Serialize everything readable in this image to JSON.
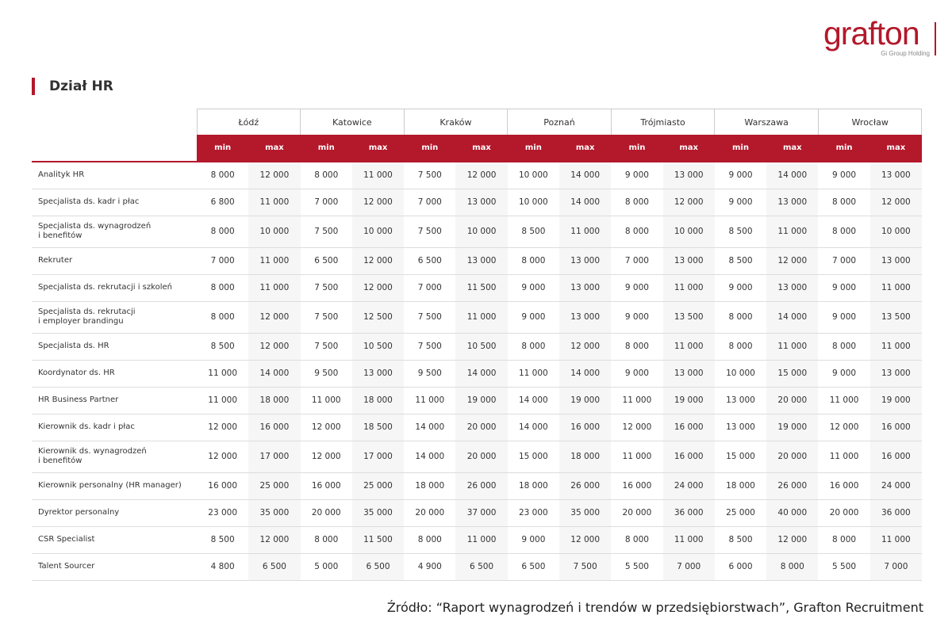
{
  "header": {
    "logo": "grafton",
    "tagline": "Gi Group Holding"
  },
  "title": "Dział HR",
  "table": {
    "cities": [
      "Łódź",
      "Katowice",
      "Kraków",
      "Poznań",
      "Trójmiasto",
      "Warszawa",
      "Wrocław"
    ],
    "subheaders": [
      "min",
      "max"
    ],
    "rows": [
      {
        "label": "Analityk HR",
        "values": [
          "8 000",
          "12 000",
          "8 000",
          "11 000",
          "7 500",
          "12 000",
          "10 000",
          "14 000",
          "9 000",
          "13 000",
          "9 000",
          "14 000",
          "9 000",
          "13 000"
        ]
      },
      {
        "label": "Specjalista ds. kadr i płac",
        "values": [
          "6 800",
          "11 000",
          "7 000",
          "12 000",
          "7 000",
          "13 000",
          "10 000",
          "14 000",
          "8 000",
          "12 000",
          "9 000",
          "13 000",
          "8 000",
          "12 000"
        ]
      },
      {
        "label": "Specjalista ds. wynagrodzeń\ni benefitów",
        "values": [
          "8 000",
          "10 000",
          "7 500",
          "10 000",
          "7 500",
          "10 000",
          "8 500",
          "11 000",
          "8 000",
          "10 000",
          "8 500",
          "11 000",
          "8 000",
          "10 000"
        ]
      },
      {
        "label": "Rekruter",
        "values": [
          "7 000",
          "11 000",
          "6 500",
          "12 000",
          "6 500",
          "13 000",
          "8 000",
          "13 000",
          "7 000",
          "13 000",
          "8 500",
          "12 000",
          "7 000",
          "13 000"
        ]
      },
      {
        "label": "Specjalista ds. rekrutacji i szkoleń",
        "values": [
          "8 000",
          "11 000",
          "7 500",
          "12 000",
          "7 000",
          "11 500",
          "9 000",
          "13 000",
          "9 000",
          "11 000",
          "9 000",
          "13 000",
          "9 000",
          "11 000"
        ]
      },
      {
        "label": "Specjalista ds. rekrutacji\ni employer brandingu",
        "values": [
          "8 000",
          "12 000",
          "7 500",
          "12 500",
          "7 500",
          "11 000",
          "9 000",
          "13 000",
          "9 000",
          "13 500",
          "8 000",
          "14 000",
          "9 000",
          "13 500"
        ]
      },
      {
        "label": "Specjalista ds. HR",
        "values": [
          "8 500",
          "12 000",
          "7 500",
          "10 500",
          "7 500",
          "10 500",
          "8 000",
          "12 000",
          "8 000",
          "11 000",
          "8 000",
          "11 000",
          "8 000",
          "11 000"
        ]
      },
      {
        "label": "Koordynator ds. HR",
        "values": [
          "11 000",
          "14 000",
          "9 500",
          "13 000",
          "9 500",
          "14 000",
          "11 000",
          "14 000",
          "9 000",
          "13 000",
          "10 000",
          "15 000",
          "9 000",
          "13 000"
        ]
      },
      {
        "label": "HR Business Partner",
        "values": [
          "11 000",
          "18 000",
          "11 000",
          "18 000",
          "11 000",
          "19 000",
          "14 000",
          "19 000",
          "11 000",
          "19 000",
          "13 000",
          "20 000",
          "11 000",
          "19 000"
        ]
      },
      {
        "label": "Kierownik ds. kadr i płac",
        "values": [
          "12 000",
          "16 000",
          "12 000",
          "18 500",
          "14 000",
          "20 000",
          "14 000",
          "16 000",
          "12 000",
          "16 000",
          "13 000",
          "19 000",
          "12 000",
          "16 000"
        ]
      },
      {
        "label": "Kierownik ds. wynagrodzeń\ni benefitów",
        "values": [
          "12 000",
          "17 000",
          "12 000",
          "17 000",
          "14 000",
          "20 000",
          "15 000",
          "18 000",
          "11 000",
          "16 000",
          "15 000",
          "20 000",
          "11 000",
          "16 000"
        ]
      },
      {
        "label": "Kierownik personalny (HR manager)",
        "values": [
          "16 000",
          "25 000",
          "16 000",
          "25 000",
          "18 000",
          "26 000",
          "18 000",
          "26 000",
          "16 000",
          "24 000",
          "18 000",
          "26 000",
          "16 000",
          "24 000"
        ]
      },
      {
        "label": "Dyrektor personalny",
        "values": [
          "23 000",
          "35 000",
          "20 000",
          "35 000",
          "20 000",
          "37 000",
          "23 000",
          "35 000",
          "20 000",
          "36 000",
          "25 000",
          "40 000",
          "20 000",
          "36 000"
        ]
      },
      {
        "label": "CSR Specialist",
        "values": [
          "8 500",
          "12 000",
          "8 000",
          "11 500",
          "8 000",
          "11 000",
          "9 000",
          "12 000",
          "8 000",
          "11 000",
          "8 500",
          "12 000",
          "8 000",
          "11 000"
        ]
      },
      {
        "label": "Talent Sourcer",
        "values": [
          "4 800",
          "6 500",
          "5 000",
          "6 500",
          "4 900",
          "6 500",
          "6 500",
          "7 500",
          "5 500",
          "7 000",
          "6 000",
          "8 000",
          "5 500",
          "7 000"
        ]
      }
    ]
  },
  "source": "Źródło: “Raport wynagrodzeń i trendów w przedsiębiorstwach”, Grafton Recruitment"
}
